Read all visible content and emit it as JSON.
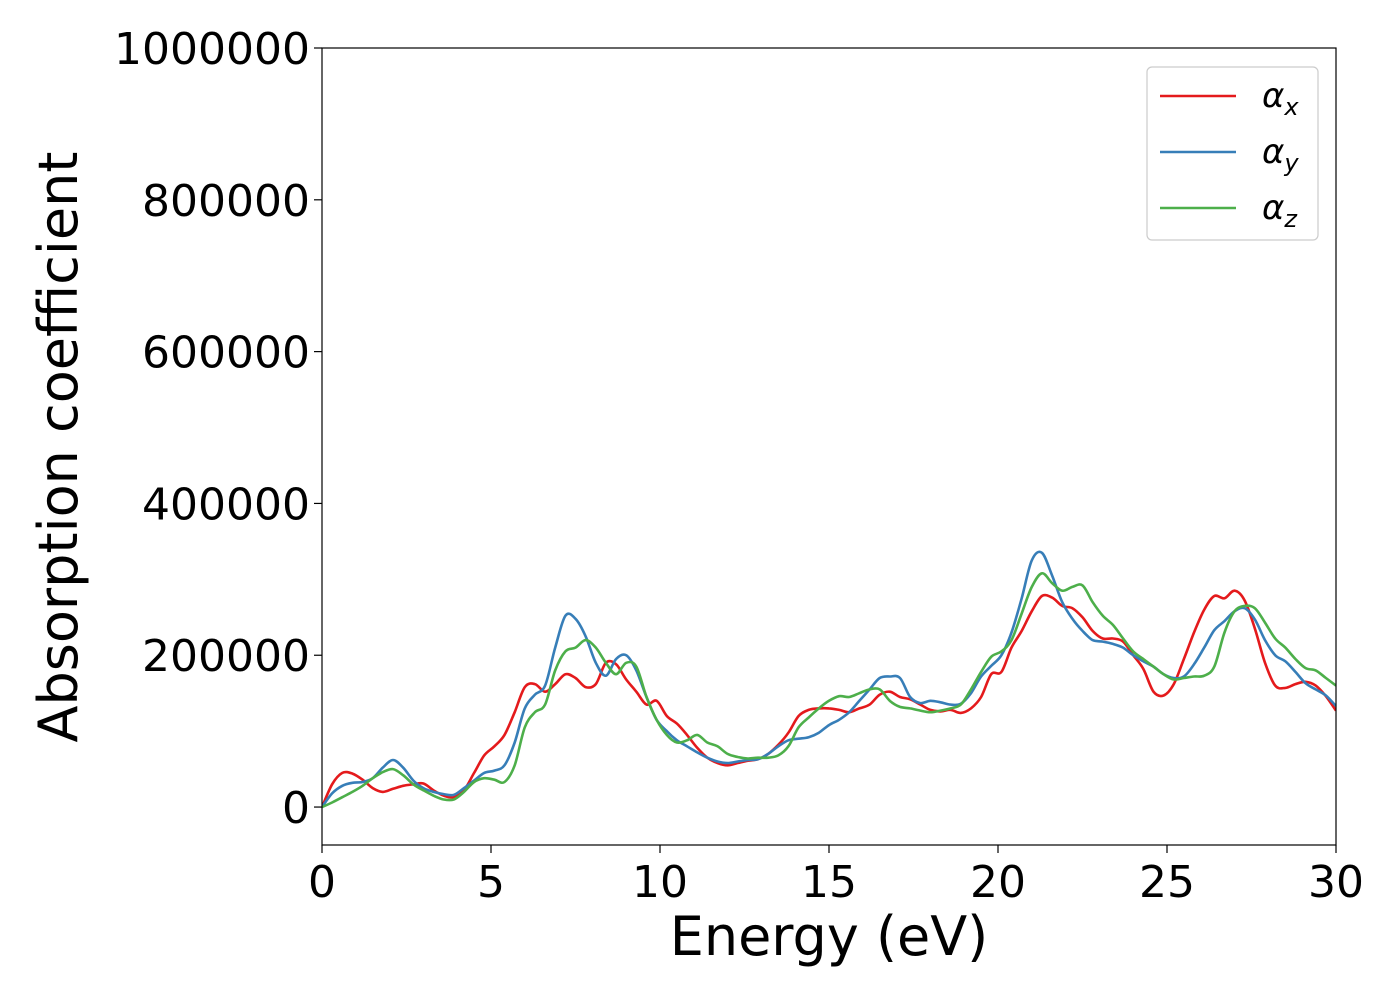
{
  "chart_data": {
    "type": "line",
    "xlabel": "Energy (eV)",
    "ylabel": "Absorption coefficient",
    "xlim": [
      0,
      30
    ],
    "ylim": [
      -50000,
      1000000
    ],
    "xticks": [
      0,
      5,
      10,
      15,
      20,
      25,
      30
    ],
    "xtick_labels": [
      "0",
      "5",
      "10",
      "15",
      "20",
      "25",
      "30"
    ],
    "yticks": [
      0,
      200000,
      400000,
      600000,
      800000,
      1000000
    ],
    "ytick_labels": [
      "0",
      "200000",
      "400000",
      "600000",
      "800000",
      "1000000"
    ],
    "grid": false,
    "legend_position": "top-right",
    "series": [
      {
        "name": "α",
        "subscript": "x",
        "color": "#e41a1c",
        "x": [
          0,
          0.3,
          0.6,
          0.9,
          1.2,
          1.5,
          1.8,
          2.1,
          2.4,
          2.7,
          3.0,
          3.3,
          3.6,
          3.9,
          4.2,
          4.5,
          4.8,
          5.1,
          5.4,
          5.7,
          6.0,
          6.3,
          6.6,
          6.9,
          7.2,
          7.5,
          7.8,
          8.1,
          8.4,
          8.7,
          9.0,
          9.3,
          9.6,
          9.9,
          10.2,
          10.5,
          10.8,
          11.1,
          11.4,
          11.7,
          12.0,
          12.3,
          12.6,
          12.9,
          13.2,
          13.5,
          13.8,
          14.1,
          14.4,
          14.7,
          15.0,
          15.3,
          15.6,
          15.9,
          16.2,
          16.5,
          16.8,
          17.1,
          17.4,
          17.7,
          18.0,
          18.3,
          18.6,
          18.9,
          19.2,
          19.5,
          19.8,
          20.1,
          20.4,
          20.7,
          21.0,
          21.3,
          21.6,
          21.9,
          22.2,
          22.5,
          22.8,
          23.1,
          23.4,
          23.7,
          24.0,
          24.3,
          24.6,
          24.9,
          25.2,
          25.5,
          25.8,
          26.1,
          26.4,
          26.7,
          27.0,
          27.3,
          27.6,
          27.9,
          28.2,
          28.5,
          28.8,
          29.1,
          29.4,
          29.7,
          30.0
        ],
        "y": [
          0,
          30000,
          45000,
          44000,
          36000,
          25000,
          20000,
          24000,
          28000,
          30000,
          31000,
          22000,
          15000,
          13000,
          22000,
          45000,
          68000,
          80000,
          95000,
          125000,
          158000,
          162000,
          152000,
          162000,
          175000,
          170000,
          158000,
          162000,
          190000,
          188000,
          168000,
          152000,
          135000,
          140000,
          120000,
          110000,
          95000,
          78000,
          65000,
          58000,
          55000,
          58000,
          61000,
          63000,
          70000,
          82000,
          98000,
          120000,
          128000,
          130000,
          130000,
          128000,
          125000,
          130000,
          135000,
          148000,
          152000,
          145000,
          142000,
          135000,
          128000,
          126000,
          128000,
          124000,
          130000,
          145000,
          175000,
          178000,
          210000,
          232000,
          258000,
          278000,
          276000,
          265000,
          262000,
          250000,
          232000,
          222000,
          222000,
          218000,
          200000,
          182000,
          152000,
          147000,
          162000,
          195000,
          230000,
          260000,
          278000,
          275000,
          285000,
          272000,
          235000,
          190000,
          160000,
          157000,
          162000,
          165000,
          160000,
          146000,
          127000
        ]
      },
      {
        "name": "α",
        "subscript": "y",
        "color": "#377eb8",
        "x": [
          0,
          0.3,
          0.6,
          0.9,
          1.2,
          1.5,
          1.8,
          2.1,
          2.4,
          2.7,
          3.0,
          3.3,
          3.6,
          3.9,
          4.2,
          4.5,
          4.8,
          5.1,
          5.4,
          5.7,
          6.0,
          6.3,
          6.6,
          6.9,
          7.2,
          7.5,
          7.8,
          8.1,
          8.4,
          8.7,
          9.0,
          9.3,
          9.6,
          9.9,
          10.2,
          10.5,
          10.8,
          11.1,
          11.4,
          11.7,
          12.0,
          12.3,
          12.6,
          12.9,
          13.2,
          13.5,
          13.8,
          14.1,
          14.4,
          14.7,
          15.0,
          15.3,
          15.6,
          15.9,
          16.2,
          16.5,
          16.8,
          17.1,
          17.4,
          17.7,
          18.0,
          18.3,
          18.6,
          18.9,
          19.2,
          19.5,
          19.8,
          20.1,
          20.4,
          20.7,
          21.0,
          21.3,
          21.6,
          21.9,
          22.2,
          22.5,
          22.8,
          23.1,
          23.4,
          23.7,
          24.0,
          24.3,
          24.6,
          24.9,
          25.2,
          25.5,
          25.8,
          26.1,
          26.4,
          26.7,
          27.0,
          27.3,
          27.6,
          27.9,
          28.2,
          28.5,
          28.8,
          29.1,
          29.4,
          29.7,
          30.0
        ],
        "y": [
          0,
          18000,
          28000,
          32000,
          33000,
          38000,
          52000,
          62000,
          52000,
          35000,
          25000,
          20000,
          17000,
          16000,
          25000,
          35000,
          45000,
          48000,
          55000,
          85000,
          130000,
          148000,
          160000,
          210000,
          252000,
          248000,
          225000,
          190000,
          173000,
          195000,
          200000,
          180000,
          145000,
          115000,
          100000,
          88000,
          80000,
          72000,
          65000,
          60000,
          58000,
          60000,
          62000,
          63000,
          70000,
          80000,
          88000,
          90000,
          92000,
          98000,
          108000,
          115000,
          125000,
          140000,
          155000,
          170000,
          172000,
          170000,
          145000,
          137000,
          140000,
          138000,
          135000,
          136000,
          150000,
          172000,
          186000,
          200000,
          230000,
          275000,
          325000,
          335000,
          305000,
          270000,
          248000,
          232000,
          220000,
          218000,
          215000,
          210000,
          200000,
          192000,
          185000,
          175000,
          170000,
          172000,
          188000,
          210000,
          233000,
          245000,
          258000,
          262000,
          247000,
          220000,
          200000,
          192000,
          178000,
          163000,
          155000,
          147000,
          133000
        ]
      },
      {
        "name": "α",
        "subscript": "z",
        "color": "#4daf4a",
        "x": [
          0,
          0.3,
          0.6,
          0.9,
          1.2,
          1.5,
          1.8,
          2.1,
          2.4,
          2.7,
          3.0,
          3.3,
          3.6,
          3.9,
          4.2,
          4.5,
          4.8,
          5.1,
          5.4,
          5.7,
          6.0,
          6.3,
          6.6,
          6.9,
          7.2,
          7.5,
          7.8,
          8.1,
          8.4,
          8.7,
          9.0,
          9.3,
          9.6,
          9.9,
          10.2,
          10.5,
          10.8,
          11.1,
          11.4,
          11.7,
          12.0,
          12.3,
          12.6,
          12.9,
          13.2,
          13.5,
          13.8,
          14.1,
          14.4,
          14.7,
          15.0,
          15.3,
          15.6,
          15.9,
          16.2,
          16.5,
          16.8,
          17.1,
          17.4,
          17.7,
          18.0,
          18.3,
          18.6,
          18.9,
          19.2,
          19.5,
          19.8,
          20.1,
          20.4,
          20.7,
          21.0,
          21.3,
          21.6,
          21.9,
          22.2,
          22.5,
          22.8,
          23.1,
          23.4,
          23.7,
          24.0,
          24.3,
          24.6,
          24.9,
          25.2,
          25.5,
          25.8,
          26.1,
          26.4,
          26.7,
          27.0,
          27.3,
          27.6,
          27.9,
          28.2,
          28.5,
          28.8,
          29.1,
          29.4,
          29.7,
          30.0
        ],
        "y": [
          0,
          6000,
          13000,
          20000,
          28000,
          38000,
          46000,
          50000,
          42000,
          30000,
          22000,
          15000,
          10000,
          10000,
          20000,
          33000,
          38000,
          36000,
          33000,
          55000,
          105000,
          125000,
          135000,
          180000,
          205000,
          210000,
          220000,
          210000,
          190000,
          175000,
          190000,
          185000,
          145000,
          115000,
          95000,
          85000,
          88000,
          95000,
          85000,
          80000,
          70000,
          66000,
          64000,
          65000,
          65000,
          68000,
          80000,
          105000,
          118000,
          130000,
          140000,
          146000,
          145000,
          150000,
          155000,
          155000,
          140000,
          132000,
          130000,
          127000,
          125000,
          127000,
          130000,
          135000,
          155000,
          178000,
          198000,
          205000,
          220000,
          255000,
          290000,
          308000,
          295000,
          285000,
          290000,
          292000,
          270000,
          252000,
          240000,
          222000,
          205000,
          195000,
          185000,
          175000,
          168000,
          170000,
          172000,
          173000,
          185000,
          230000,
          258000,
          265000,
          262000,
          243000,
          222000,
          210000,
          195000,
          183000,
          180000,
          170000,
          160000
        ]
      }
    ]
  }
}
